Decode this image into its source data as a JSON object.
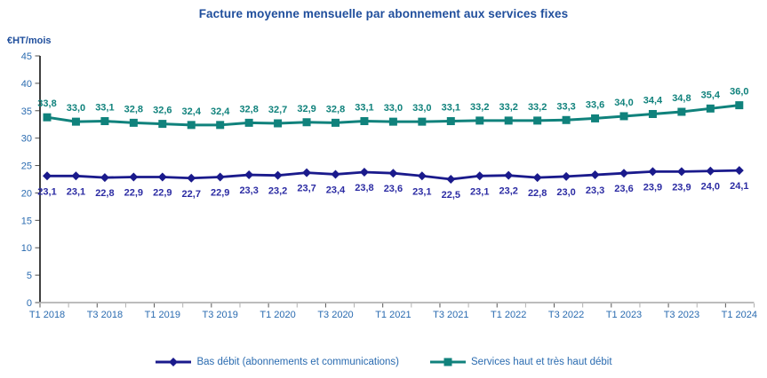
{
  "chart_data": {
    "type": "line",
    "title": "Facture moyenne mensuelle par abonnement aux services fixes",
    "ylabel": "€HT/mois",
    "ylim": [
      0,
      45
    ],
    "ytick_step": 5,
    "y_tick_labels": [
      0,
      5,
      10,
      15,
      20,
      25,
      30,
      35,
      40,
      45
    ],
    "grid": false,
    "legend_position": "bottom",
    "decimal_separator": ",",
    "n_points": 25,
    "x_tick_labels": [
      "T1 2018",
      "T3 2018",
      "T1 2019",
      "T3 2019",
      "T1 2020",
      "T3 2020",
      "T1 2021",
      "T3 2021",
      "T1 2022",
      "T3 2022",
      "T1 2023",
      "T3 2023",
      "T1 2024"
    ],
    "x_tick_label_indices": [
      0,
      2,
      4,
      6,
      8,
      10,
      12,
      14,
      16,
      18,
      20,
      22,
      24
    ],
    "series": [
      {
        "name": "Bas débit (abonnements et communications)",
        "marker": "diamond",
        "color": "#1A1A8C",
        "label_color": "#2B2BA3",
        "label_position": "below",
        "values": [
          23.1,
          23.1,
          22.8,
          22.9,
          22.9,
          22.7,
          22.9,
          23.3,
          23.2,
          23.7,
          23.4,
          23.8,
          23.6,
          23.1,
          22.5,
          23.1,
          23.2,
          22.8,
          23.0,
          23.3,
          23.6,
          23.9,
          23.9,
          24.0,
          24.1
        ]
      },
      {
        "name": "Services haut et très haut débit",
        "marker": "square",
        "color": "#10827C",
        "label_color": "#10827C",
        "label_position": "above",
        "values": [
          33.8,
          33.0,
          33.1,
          32.8,
          32.6,
          32.4,
          32.4,
          32.8,
          32.7,
          32.9,
          32.8,
          33.1,
          33.0,
          33.0,
          33.1,
          33.2,
          33.2,
          33.2,
          33.3,
          33.6,
          34.0,
          34.4,
          34.8,
          35.4,
          36.0
        ]
      }
    ],
    "colors": {
      "title": "#1F4E9C",
      "axis_labels": "#2A6BB0",
      "y_axis_line": "#2B2B2B",
      "x_axis_line": "#A6A6A6",
      "tick_major": "#565656",
      "tick_minor": "#B0B0B0"
    }
  }
}
